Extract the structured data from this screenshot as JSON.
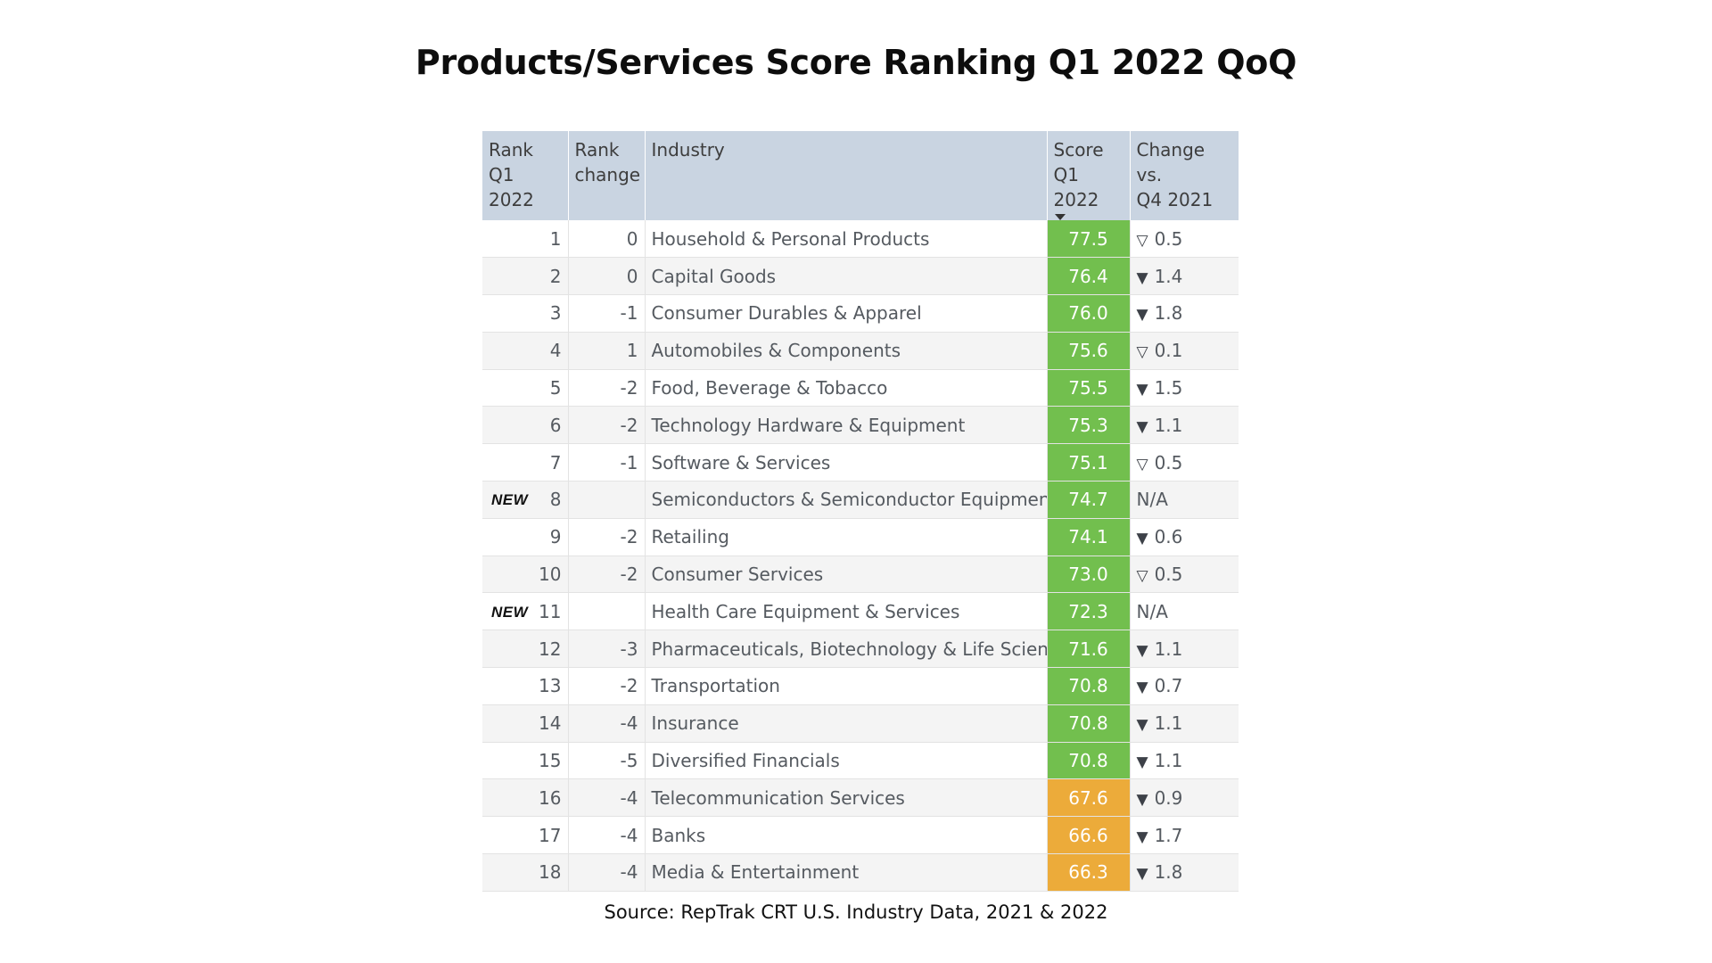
{
  "title": "Products/Services Score Ranking Q1 2022 QoQ",
  "headers": {
    "rank": [
      "Rank Q1",
      "2022"
    ],
    "rank_change": [
      "Rank",
      "change"
    ],
    "industry": "Industry",
    "score": [
      "Score",
      "Q1 2022"
    ],
    "change": [
      "Change vs.",
      "Q4 2021"
    ]
  },
  "new_label": "NEW",
  "colors": {
    "green": "#72bf4e",
    "orange": "#ecab3a",
    "header_bg": "#c9d4e1"
  },
  "rows": [
    {
      "rank": "1",
      "rank_change": "0",
      "industry": "Household & Personal Products",
      "score": "77.5",
      "score_color": "green",
      "change_icon": "down-outline",
      "change": "0.5",
      "is_new": false
    },
    {
      "rank": "2",
      "rank_change": "0",
      "industry": "Capital Goods",
      "score": "76.4",
      "score_color": "green",
      "change_icon": "down-filled",
      "change": "1.4",
      "is_new": false
    },
    {
      "rank": "3",
      "rank_change": "-1",
      "industry": "Consumer Durables & Apparel",
      "score": "76.0",
      "score_color": "green",
      "change_icon": "down-filled",
      "change": "1.8",
      "is_new": false
    },
    {
      "rank": "4",
      "rank_change": "1",
      "industry": "Automobiles & Components",
      "score": "75.6",
      "score_color": "green",
      "change_icon": "down-outline",
      "change": "0.1",
      "is_new": false
    },
    {
      "rank": "5",
      "rank_change": "-2",
      "industry": "Food, Beverage & Tobacco",
      "score": "75.5",
      "score_color": "green",
      "change_icon": "down-filled",
      "change": "1.5",
      "is_new": false
    },
    {
      "rank": "6",
      "rank_change": "-2",
      "industry": "Technology Hardware & Equipment",
      "score": "75.3",
      "score_color": "green",
      "change_icon": "down-filled",
      "change": "1.1",
      "is_new": false
    },
    {
      "rank": "7",
      "rank_change": "-1",
      "industry": "Software & Services",
      "score": "75.1",
      "score_color": "green",
      "change_icon": "down-outline",
      "change": "0.5",
      "is_new": false
    },
    {
      "rank": "8",
      "rank_change": "",
      "industry": "Semiconductors & Semiconductor Equipment",
      "score": "74.7",
      "score_color": "green",
      "change_icon": "none",
      "change": "N/A",
      "is_new": true
    },
    {
      "rank": "9",
      "rank_change": "-2",
      "industry": "Retailing",
      "score": "74.1",
      "score_color": "green",
      "change_icon": "down-filled",
      "change": "0.6",
      "is_new": false
    },
    {
      "rank": "10",
      "rank_change": "-2",
      "industry": "Consumer Services",
      "score": "73.0",
      "score_color": "green",
      "change_icon": "down-outline",
      "change": "0.5",
      "is_new": false
    },
    {
      "rank": "11",
      "rank_change": "",
      "industry": "Health Care Equipment & Services",
      "score": "72.3",
      "score_color": "green",
      "change_icon": "none",
      "change": "N/A",
      "is_new": true
    },
    {
      "rank": "12",
      "rank_change": "-3",
      "industry": "Pharmaceuticals, Biotechnology & Life Sciences",
      "score": "71.6",
      "score_color": "green",
      "change_icon": "down-filled",
      "change": "1.1",
      "is_new": false
    },
    {
      "rank": "13",
      "rank_change": "-2",
      "industry": "Transportation",
      "score": "70.8",
      "score_color": "green",
      "change_icon": "down-filled",
      "change": "0.7",
      "is_new": false
    },
    {
      "rank": "14",
      "rank_change": "-4",
      "industry": "Insurance",
      "score": "70.8",
      "score_color": "green",
      "change_icon": "down-filled",
      "change": "1.1",
      "is_new": false
    },
    {
      "rank": "15",
      "rank_change": "-5",
      "industry": "Diversified Financials",
      "score": "70.8",
      "score_color": "green",
      "change_icon": "down-filled",
      "change": "1.1",
      "is_new": false
    },
    {
      "rank": "16",
      "rank_change": "-4",
      "industry": "Telecommunication Services",
      "score": "67.6",
      "score_color": "orange",
      "change_icon": "down-filled",
      "change": "0.9",
      "is_new": false
    },
    {
      "rank": "17",
      "rank_change": "-4",
      "industry": "Banks",
      "score": "66.6",
      "score_color": "orange",
      "change_icon": "down-filled",
      "change": "1.7",
      "is_new": false
    },
    {
      "rank": "18",
      "rank_change": "-4",
      "industry": "Media & Entertainment",
      "score": "66.3",
      "score_color": "orange",
      "change_icon": "down-filled",
      "change": "1.8",
      "is_new": false
    }
  ],
  "source": "Source: RepTrak CRT U.S. Industry Data, 2021 & 2022"
}
